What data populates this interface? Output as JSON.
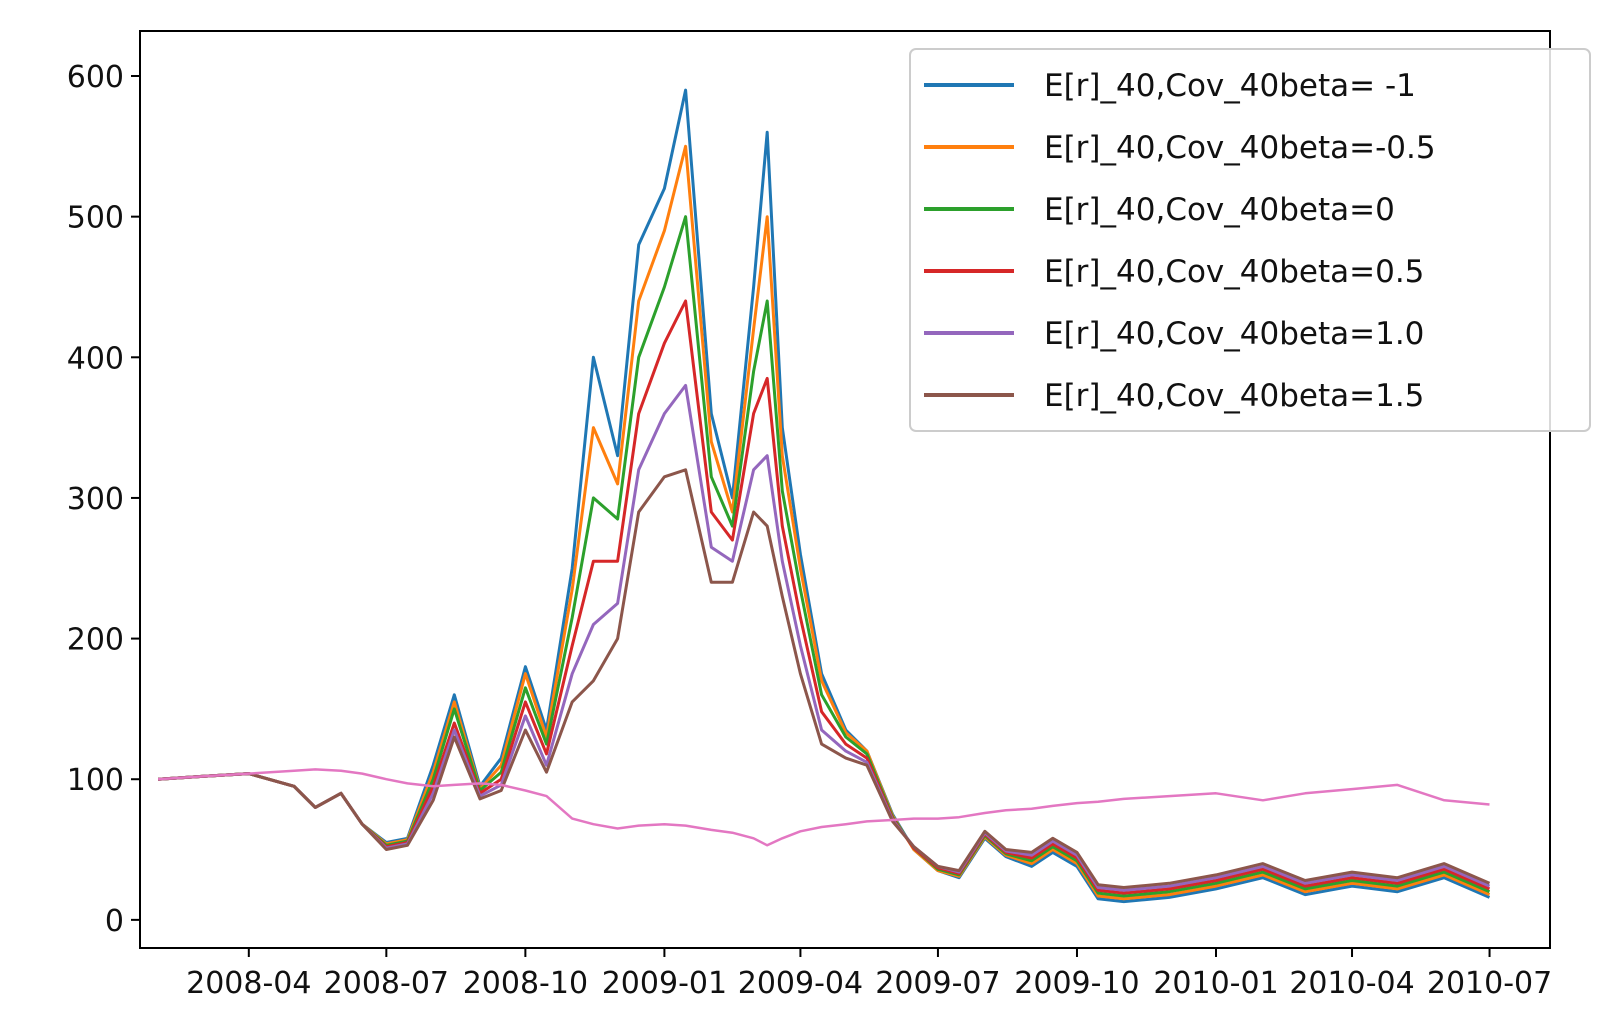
{
  "chart_data": {
    "type": "line",
    "title": "",
    "xlabel": "",
    "ylabel": "",
    "ylim": [
      -20,
      632
    ],
    "xlim": [
      "2008-01-20",
      "2010-08-10"
    ],
    "grid": false,
    "legend": "top-right",
    "yticks": [
      0,
      100,
      200,
      300,
      400,
      500,
      600
    ],
    "xticks": [
      "2008-04",
      "2008-07",
      "2008-10",
      "2009-01",
      "2009-04",
      "2009-07",
      "2009-10",
      "2010-01",
      "2010-04",
      "2010-07"
    ],
    "x": [
      "2008-02-01",
      "2008-03-01",
      "2008-04-01",
      "2008-05-01",
      "2008-05-15",
      "2008-06-01",
      "2008-06-15",
      "2008-07-01",
      "2008-07-15",
      "2008-08-01",
      "2008-08-15",
      "2008-09-01",
      "2008-09-15",
      "2008-10-01",
      "2008-10-15",
      "2008-11-01",
      "2008-11-15",
      "2008-12-01",
      "2008-12-15",
      "2009-01-01",
      "2009-01-15",
      "2009-02-01",
      "2009-02-15",
      "2009-03-01",
      "2009-03-10",
      "2009-03-20",
      "2009-04-01",
      "2009-04-15",
      "2009-05-01",
      "2009-05-15",
      "2009-06-01",
      "2009-06-15",
      "2009-07-01",
      "2009-07-15",
      "2009-08-01",
      "2009-08-15",
      "2009-09-01",
      "2009-09-15",
      "2009-10-01",
      "2009-10-15",
      "2009-11-01",
      "2009-12-01",
      "2010-01-01",
      "2010-02-01",
      "2010-03-01",
      "2010-04-01",
      "2010-05-01",
      "2010-06-01",
      "2010-07-01"
    ],
    "series": [
      {
        "name": "E[r]_40,Cov_40beta= -1",
        "color": "#1f77b4",
        "values": [
          100,
          102,
          104,
          95,
          80,
          90,
          68,
          55,
          58,
          110,
          160,
          95,
          115,
          180,
          135,
          250,
          400,
          330,
          480,
          520,
          590,
          360,
          300,
          450,
          560,
          350,
          260,
          175,
          135,
          120,
          75,
          50,
          35,
          30,
          58,
          45,
          38,
          48,
          38,
          15,
          13,
          16,
          22,
          30,
          18,
          24,
          20,
          30,
          16
        ]
      },
      {
        "name": "E[r]_40,Cov_40beta=-0.5",
        "color": "#ff7f0e",
        "values": [
          100,
          102,
          104,
          95,
          80,
          90,
          68,
          54,
          57,
          105,
          155,
          93,
          110,
          175,
          130,
          235,
          350,
          310,
          440,
          490,
          550,
          340,
          290,
          420,
          500,
          330,
          250,
          170,
          133,
          120,
          74,
          50,
          35,
          31,
          59,
          46,
          40,
          50,
          40,
          17,
          15,
          18,
          24,
          32,
          20,
          26,
          22,
          32,
          18
        ]
      },
      {
        "name": "E[r]_40,Cov_40beta=0",
        "color": "#2ca02c",
        "values": [
          100,
          102,
          104,
          95,
          80,
          90,
          68,
          53,
          56,
          100,
          150,
          92,
          105,
          165,
          125,
          215,
          300,
          285,
          400,
          450,
          500,
          315,
          280,
          390,
          440,
          305,
          235,
          160,
          130,
          118,
          73,
          51,
          36,
          32,
          60,
          47,
          42,
          52,
          42,
          19,
          17,
          20,
          26,
          34,
          22,
          28,
          24,
          34,
          20
        ]
      },
      {
        "name": "E[r]_40,Cov_40beta=0.5",
        "color": "#d62728",
        "values": [
          100,
          102,
          104,
          95,
          80,
          90,
          68,
          52,
          55,
          95,
          140,
          90,
          100,
          155,
          118,
          195,
          255,
          255,
          360,
          410,
          440,
          290,
          270,
          360,
          385,
          280,
          215,
          148,
          125,
          115,
          72,
          51,
          37,
          33,
          61,
          48,
          44,
          54,
          44,
          21,
          19,
          22,
          28,
          36,
          24,
          30,
          26,
          36,
          22
        ]
      },
      {
        "name": "E[r]_40,Cov_40beta=1.0",
        "color": "#9467bd",
        "values": [
          100,
          102,
          104,
          95,
          80,
          90,
          68,
          51,
          54,
          90,
          135,
          88,
          96,
          145,
          110,
          175,
          210,
          225,
          320,
          360,
          380,
          265,
          255,
          320,
          330,
          255,
          195,
          135,
          120,
          112,
          71,
          52,
          38,
          34,
          62,
          49,
          46,
          56,
          46,
          23,
          21,
          24,
          30,
          38,
          26,
          32,
          28,
          38,
          24
        ]
      },
      {
        "name": "E[r]_40,Cov_40beta=1.5",
        "color": "#8c564b",
        "values": [
          100,
          102,
          104,
          95,
          80,
          90,
          68,
          50,
          53,
          85,
          130,
          86,
          92,
          135,
          105,
          155,
          170,
          200,
          290,
          315,
          320,
          240,
          240,
          290,
          280,
          230,
          175,
          125,
          115,
          110,
          70,
          52,
          38,
          35,
          63,
          50,
          48,
          58,
          48,
          25,
          23,
          26,
          32,
          40,
          28,
          34,
          30,
          40,
          26
        ]
      },
      {
        "color": "#e377c2",
        "values": [
          100,
          102,
          104,
          106,
          107,
          106,
          104,
          100,
          97,
          95,
          96,
          97,
          96,
          92,
          88,
          72,
          68,
          65,
          67,
          68,
          67,
          64,
          62,
          58,
          53,
          58,
          63,
          66,
          68,
          70,
          71,
          72,
          72,
          73,
          76,
          78,
          79,
          81,
          83,
          84,
          86,
          88,
          90,
          85,
          90,
          93,
          96,
          85,
          82
        ]
      }
    ]
  }
}
